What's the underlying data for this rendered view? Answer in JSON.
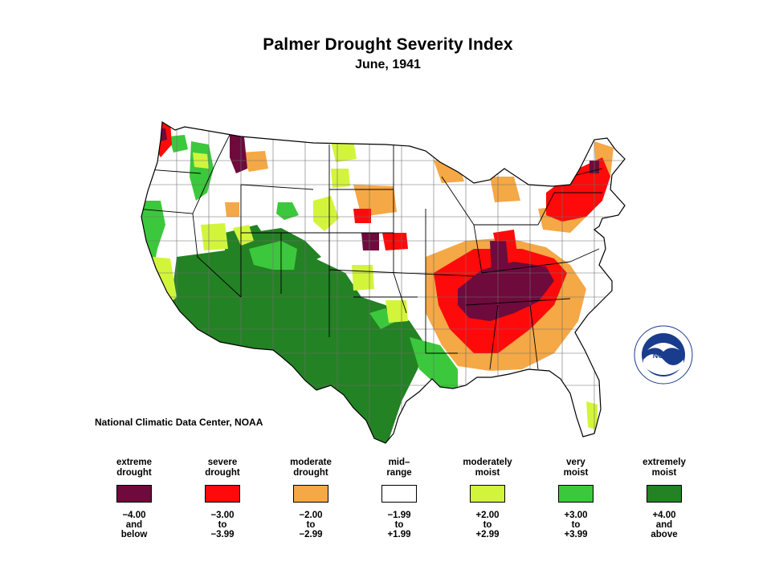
{
  "title": "Palmer Drought Severity Index",
  "subtitle": "June, 1941",
  "credit": "National Climatic Data Center, NOAA",
  "logo": {
    "icon": "noaa-logo-icon",
    "text": "NOAA"
  },
  "colors": {
    "extreme_drought": "#6e0a3c",
    "severe_drought": "#ff0a0a",
    "moderate_drought": "#f5a846",
    "mid_range": "#ffffff",
    "moderately_moist": "#d2f53c",
    "very_moist": "#3cc83c",
    "extremely_moist": "#238223",
    "state_border": "#000000",
    "division_border": "#6e6e6e"
  },
  "legend": [
    {
      "label": [
        "extreme",
        "drought"
      ],
      "color": "#6e0a3c",
      "range": [
        "−4.00",
        "and",
        "below"
      ]
    },
    {
      "label": [
        "severe",
        "drought"
      ],
      "color": "#ff0a0a",
      "range": [
        "−3.00",
        "to",
        "−3.99"
      ]
    },
    {
      "label": [
        "moderate",
        "drought"
      ],
      "color": "#f5a846",
      "range": [
        "−2.00",
        "to",
        "−2.99"
      ]
    },
    {
      "label": [
        "mid–",
        "range"
      ],
      "color": "#ffffff",
      "range": [
        "−1.99",
        "to",
        "+1.99"
      ]
    },
    {
      "label": [
        "moderately",
        "moist"
      ],
      "color": "#d2f53c",
      "range": [
        "+2.00",
        "to",
        "+2.99"
      ]
    },
    {
      "label": [
        "very",
        "moist"
      ],
      "color": "#3cc83c",
      "range": [
        "+3.00",
        "to",
        "+3.99"
      ]
    },
    {
      "label": [
        "extremely",
        "moist"
      ],
      "color": "#238223",
      "range": [
        "+4.00",
        "and",
        "above"
      ]
    }
  ]
}
